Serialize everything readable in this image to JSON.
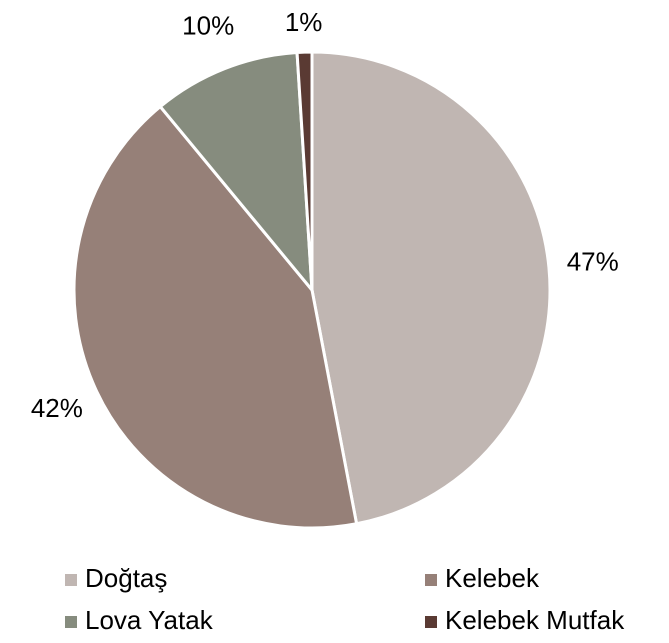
{
  "chart_data": {
    "type": "pie",
    "categories": [
      "Doğtaş",
      "Kelebek",
      "Lova Yatak",
      "Kelebek Mutfak"
    ],
    "values": [
      47,
      42,
      10,
      1
    ],
    "value_labels": [
      "47%",
      "42%",
      "10%",
      "1%"
    ],
    "colors": [
      "#c0b6b2",
      "#968078",
      "#868c7e",
      "#5a3a33"
    ],
    "legend": "bottom"
  }
}
